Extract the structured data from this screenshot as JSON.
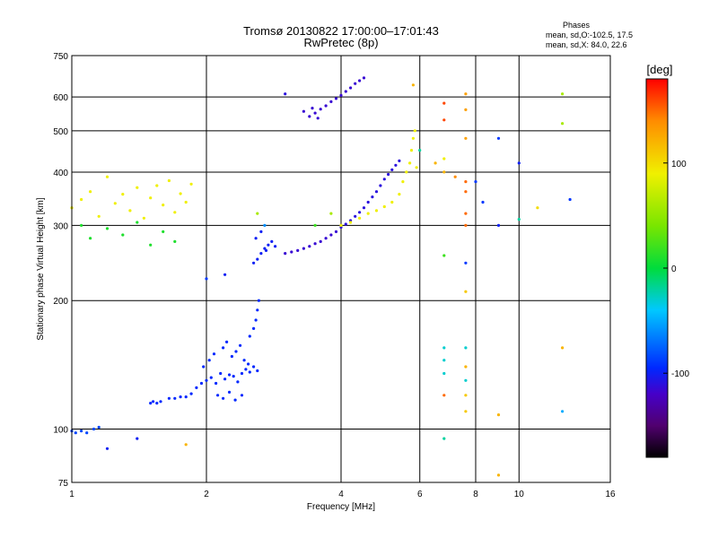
{
  "chart_data": {
    "type": "scatter",
    "title": "Tromsø 20130822 17:00:00–17:01:43",
    "subtitle": "RwPretec (8p)",
    "xlabel": "Frequency [MHz]",
    "ylabel": "Stationary phase Virtual Height [km]",
    "x_scale": "log",
    "y_scale": "log",
    "xlim": [
      1,
      16
    ],
    "ylim": [
      75,
      750
    ],
    "grid": true,
    "x_ticks": [
      1,
      2,
      4,
      8,
      16
    ],
    "x_tick_labels": [
      "1",
      "2",
      "4",
      "8",
      "16"
    ],
    "x_minor_ticks": [
      6,
      10
    ],
    "x_minor_tick_labels": [
      "6",
      "10"
    ],
    "y_ticks": [
      75,
      100,
      200,
      300,
      400,
      500,
      600,
      750
    ],
    "y_tick_labels": [
      "75",
      "100",
      "200",
      "300",
      "400",
      "500",
      "600",
      "750"
    ],
    "legend": {
      "title": "Phases",
      "line1": "mean, sd,O:-102.5, 17.5",
      "line2": "mean, sd,X:  84.0, 22.6"
    },
    "colorbar": {
      "label": "[deg]",
      "range": [
        -180,
        180
      ],
      "ticks": [
        100,
        0,
        -100
      ],
      "tick_labels": [
        "100",
        "0",
        "-100"
      ]
    },
    "series": [
      {
        "points": [
          [
            1.0,
            99,
            -85
          ],
          [
            1.02,
            98,
            -85
          ],
          [
            1.05,
            99,
            -85
          ],
          [
            1.08,
            98,
            -85
          ],
          [
            1.12,
            100,
            -85
          ],
          [
            1.15,
            101,
            -85
          ],
          [
            1.5,
            115,
            -95
          ],
          [
            1.52,
            116,
            -95
          ],
          [
            1.55,
            115,
            -95
          ],
          [
            1.58,
            116,
            -95
          ],
          [
            1.65,
            118,
            -95
          ],
          [
            1.7,
            118,
            -95
          ],
          [
            1.75,
            119,
            -95
          ],
          [
            1.8,
            119,
            -95
          ],
          [
            1.85,
            121,
            -95
          ],
          [
            1.9,
            125,
            -95
          ],
          [
            1.95,
            128,
            -95
          ],
          [
            2.0,
            130,
            -95
          ],
          [
            2.05,
            132,
            -95
          ],
          [
            2.1,
            128,
            -95
          ],
          [
            2.15,
            135,
            -95
          ],
          [
            2.2,
            131,
            -95
          ],
          [
            2.25,
            134,
            -95
          ],
          [
            2.3,
            133,
            -95
          ],
          [
            2.35,
            129,
            -95
          ],
          [
            2.4,
            135,
            -95
          ],
          [
            2.45,
            138,
            -95
          ],
          [
            2.5,
            136,
            -95
          ],
          [
            2.55,
            140,
            -95
          ],
          [
            2.6,
            137,
            -95
          ],
          [
            1.97,
            140,
            -95
          ],
          [
            2.03,
            145,
            -95
          ],
          [
            2.08,
            150,
            -95
          ],
          [
            2.18,
            155,
            -95
          ],
          [
            2.22,
            160,
            -95
          ],
          [
            2.28,
            148,
            -95
          ],
          [
            2.33,
            152,
            -95
          ],
          [
            2.38,
            157,
            -95
          ],
          [
            2.43,
            145,
            -95
          ],
          [
            2.48,
            142,
            -95
          ],
          [
            2.12,
            120,
            -95
          ],
          [
            2.18,
            118,
            -95
          ],
          [
            2.25,
            122,
            -95
          ],
          [
            2.32,
            117,
            -95
          ],
          [
            2.4,
            120,
            -95
          ],
          [
            2.5,
            165,
            -95
          ],
          [
            2.55,
            172,
            -95
          ],
          [
            2.58,
            180,
            -95
          ],
          [
            2.6,
            190,
            -95
          ],
          [
            2.62,
            200,
            -95
          ],
          [
            2.55,
            245,
            -100
          ],
          [
            2.6,
            250,
            -100
          ],
          [
            2.65,
            258,
            -100
          ],
          [
            2.7,
            265,
            -100
          ],
          [
            2.75,
            270,
            -100
          ],
          [
            2.8,
            275,
            -100
          ],
          [
            2.85,
            268,
            -100
          ],
          [
            2.58,
            280,
            -100
          ],
          [
            2.65,
            290,
            -100
          ],
          [
            2.72,
            262,
            -100
          ],
          [
            3.0,
            258,
            -115
          ],
          [
            3.1,
            260,
            -115
          ],
          [
            3.2,
            262,
            -115
          ],
          [
            3.3,
            265,
            -115
          ],
          [
            3.4,
            268,
            -115
          ],
          [
            3.5,
            272,
            -115
          ],
          [
            3.6,
            275,
            -115
          ],
          [
            3.7,
            280,
            -115
          ],
          [
            3.8,
            285,
            -115
          ],
          [
            3.9,
            290,
            -115
          ],
          [
            4.0,
            297,
            -110
          ],
          [
            4.1,
            302,
            -110
          ],
          [
            4.2,
            308,
            -110
          ],
          [
            4.3,
            315,
            -110
          ],
          [
            4.4,
            322,
            -110
          ],
          [
            4.5,
            330,
            -110
          ],
          [
            4.6,
            340,
            -110
          ],
          [
            4.7,
            350,
            -110
          ],
          [
            4.8,
            360,
            -110
          ],
          [
            4.9,
            372,
            -110
          ],
          [
            5.0,
            385,
            -110
          ],
          [
            5.1,
            395,
            -110
          ],
          [
            5.2,
            405,
            -110
          ],
          [
            5.3,
            415,
            -110
          ],
          [
            5.4,
            425,
            -110
          ],
          [
            3.4,
            540,
            -115
          ],
          [
            3.5,
            550,
            -115
          ],
          [
            3.6,
            562,
            -115
          ],
          [
            3.7,
            572,
            -115
          ],
          [
            3.8,
            585,
            -115
          ],
          [
            3.9,
            595,
            -115
          ],
          [
            4.0,
            605,
            -115
          ],
          [
            4.1,
            618,
            -115
          ],
          [
            4.2,
            630,
            -115
          ],
          [
            4.3,
            645,
            -115
          ],
          [
            4.4,
            655,
            -115
          ],
          [
            4.5,
            665,
            -115
          ],
          [
            3.3,
            555,
            -115
          ],
          [
            3.45,
            565,
            -115
          ],
          [
            3.55,
            535,
            -115
          ],
          [
            1.0,
            330,
            90
          ],
          [
            1.05,
            345,
            90
          ],
          [
            1.1,
            360,
            90
          ],
          [
            1.15,
            315,
            90
          ],
          [
            1.2,
            390,
            90
          ],
          [
            1.25,
            338,
            90
          ],
          [
            1.3,
            355,
            90
          ],
          [
            1.35,
            325,
            90
          ],
          [
            1.4,
            368,
            90
          ],
          [
            1.45,
            312,
            90
          ],
          [
            1.5,
            348,
            90
          ],
          [
            1.55,
            372,
            90
          ],
          [
            1.6,
            335,
            90
          ],
          [
            1.65,
            382,
            90
          ],
          [
            1.7,
            322,
            90
          ],
          [
            1.75,
            356,
            90
          ],
          [
            1.8,
            340,
            90
          ],
          [
            1.85,
            375,
            90
          ],
          [
            1.05,
            300,
            10
          ],
          [
            1.1,
            280,
            10
          ],
          [
            1.2,
            295,
            10
          ],
          [
            1.3,
            285,
            10
          ],
          [
            1.4,
            305,
            10
          ],
          [
            1.5,
            270,
            10
          ],
          [
            1.6,
            290,
            10
          ],
          [
            1.7,
            275,
            10
          ],
          [
            4.0,
            300,
            90
          ],
          [
            4.2,
            305,
            90
          ],
          [
            4.4,
            312,
            90
          ],
          [
            4.6,
            320,
            90
          ],
          [
            4.8,
            325,
            90
          ],
          [
            5.0,
            332,
            90
          ],
          [
            5.2,
            340,
            90
          ],
          [
            5.4,
            355,
            90
          ],
          [
            5.5,
            380,
            90
          ],
          [
            5.6,
            400,
            90
          ],
          [
            5.7,
            420,
            90
          ],
          [
            5.75,
            450,
            90
          ],
          [
            5.8,
            480,
            90
          ],
          [
            5.85,
            500,
            90
          ],
          [
            5.9,
            410,
            90
          ],
          [
            7.6,
            610,
            130
          ],
          [
            7.6,
            560,
            130
          ],
          [
            7.6,
            480,
            130
          ],
          [
            7.6,
            380,
            150
          ],
          [
            7.6,
            360,
            150
          ],
          [
            7.6,
            320,
            150
          ],
          [
            7.6,
            300,
            150
          ],
          [
            7.6,
            245,
            -90
          ],
          [
            7.6,
            210,
            110
          ],
          [
            7.6,
            155,
            -30
          ],
          [
            7.6,
            140,
            120
          ],
          [
            7.6,
            130,
            -30
          ],
          [
            7.6,
            120,
            110
          ],
          [
            7.6,
            110,
            110
          ],
          [
            6.8,
            580,
            160
          ],
          [
            6.8,
            530,
            160
          ],
          [
            6.8,
            430,
            90
          ],
          [
            6.8,
            400,
            120
          ],
          [
            6.8,
            255,
            20
          ],
          [
            6.8,
            155,
            -30
          ],
          [
            6.8,
            145,
            -30
          ],
          [
            6.8,
            135,
            -30
          ],
          [
            6.8,
            120,
            150
          ],
          [
            6.8,
            95,
            -20
          ],
          [
            7.2,
            390,
            140
          ],
          [
            8.0,
            380,
            -90
          ],
          [
            8.3,
            340,
            -90
          ],
          [
            9.0,
            480,
            -90
          ],
          [
            9.0,
            300,
            -100
          ],
          [
            9.0,
            108,
            120
          ],
          [
            9.0,
            78,
            120
          ],
          [
            10.0,
            420,
            -100
          ],
          [
            10.0,
            310,
            -20
          ],
          [
            11.0,
            330,
            100
          ],
          [
            12.5,
            610,
            60
          ],
          [
            12.5,
            520,
            60
          ],
          [
            12.5,
            155,
            120
          ],
          [
            12.5,
            110,
            -50
          ],
          [
            13.0,
            345,
            -90
          ],
          [
            6.0,
            450,
            -20
          ],
          [
            6.5,
            420,
            120
          ],
          [
            5.8,
            640,
            120
          ],
          [
            3.5,
            300,
            20
          ],
          [
            3.8,
            320,
            60
          ],
          [
            1.4,
            95,
            -100
          ],
          [
            1.8,
            92,
            120
          ],
          [
            1.2,
            90,
            -100
          ],
          [
            2.2,
            230,
            -100
          ],
          [
            2.0,
            225,
            -90
          ],
          [
            3.0,
            610,
            -110
          ],
          [
            2.6,
            320,
            60
          ],
          [
            2.7,
            300,
            -60
          ]
        ]
      }
    ]
  }
}
